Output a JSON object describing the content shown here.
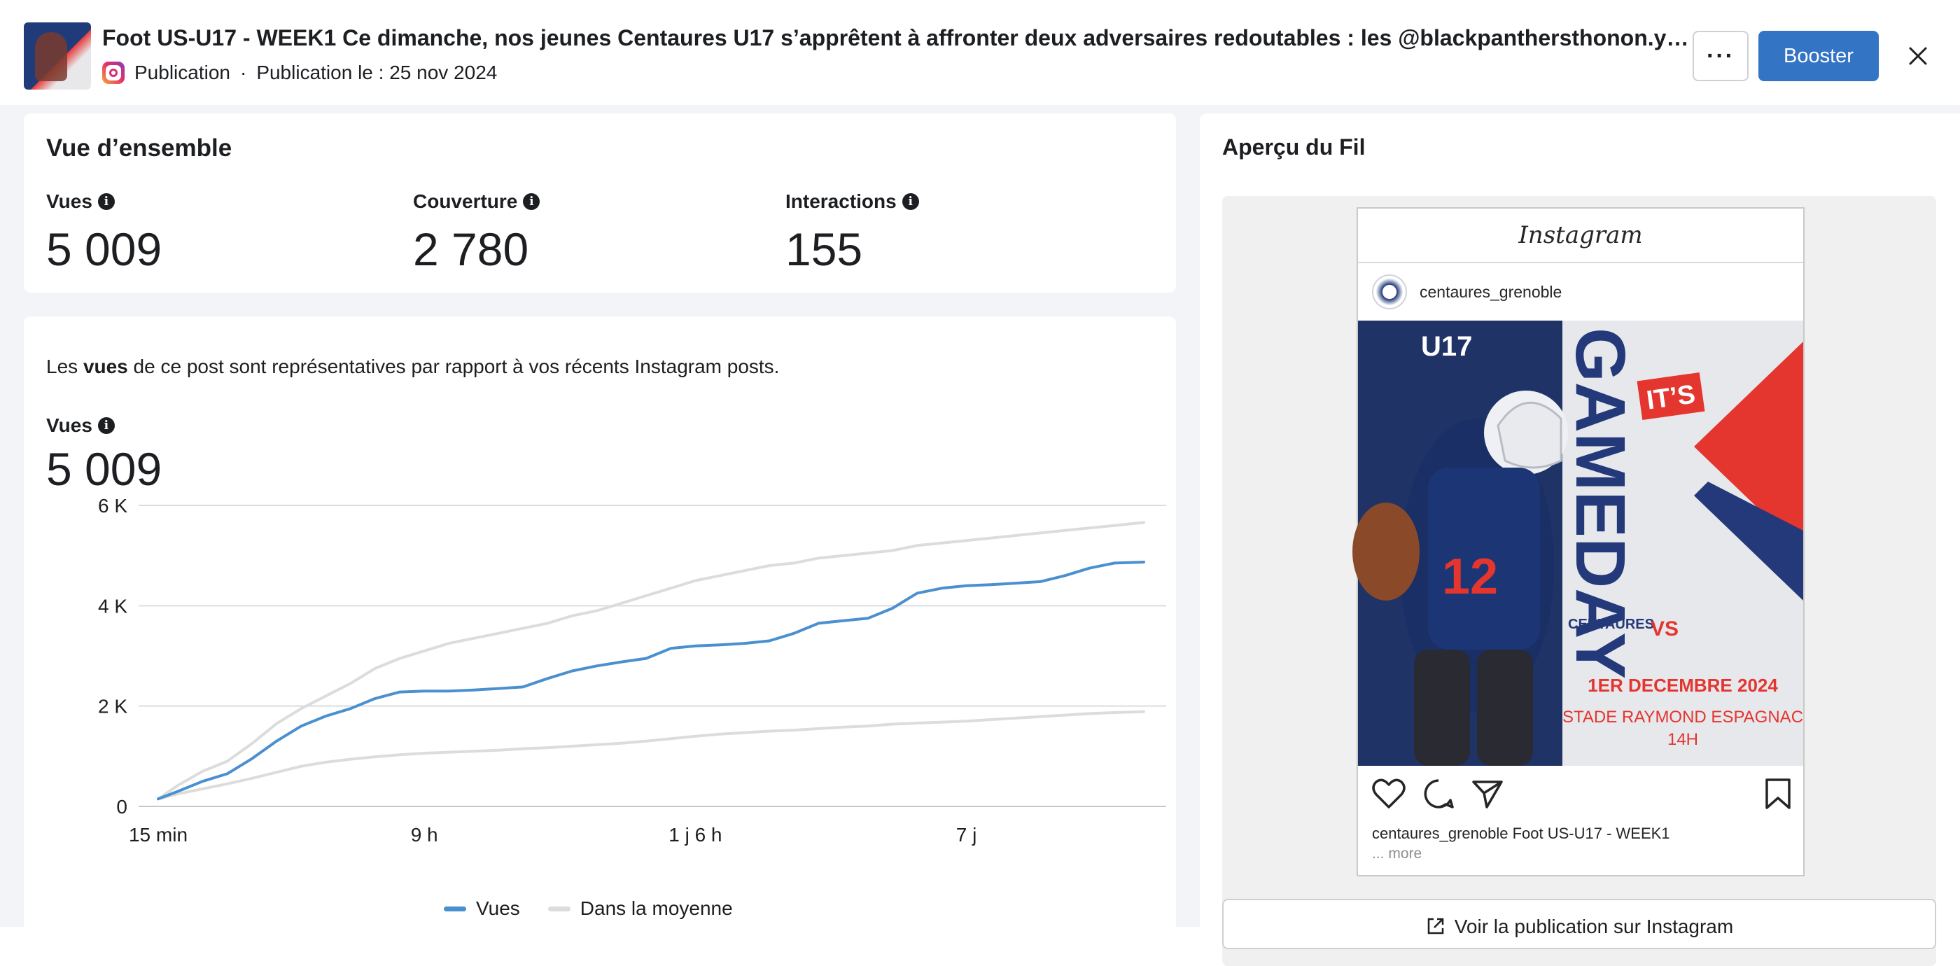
{
  "header": {
    "title": "Foot US-U17 - WEEK1 Ce dimanche, nos jeunes Centaures U17 s’apprêtent à affronter deux adversaires redoutables : les @blackpanthersthonon.y…",
    "type_label": "Publication",
    "separator": "·",
    "date_label": "Publication le : 25 nov 2024",
    "more_label": "···",
    "boost_label": "Booster",
    "platform_icon": "instagram-icon",
    "close_icon": "close-icon"
  },
  "overview": {
    "title": "Vue d’ensemble",
    "metrics": [
      {
        "label": "Vues",
        "value": "5 009"
      },
      {
        "label": "Couverture",
        "value": "2 780"
      },
      {
        "label": "Interactions",
        "value": "155"
      }
    ]
  },
  "views_section": {
    "desc_prefix": "Les ",
    "desc_bold": "vues",
    "desc_suffix": " de ce post sont représentatives par rapport à vos récents Instagram posts.",
    "label": "Vues",
    "value": "5 009"
  },
  "chart_data": {
    "type": "line",
    "x_tick_labels": [
      "15 min",
      "9 h",
      "1 j 6 h",
      "7 j"
    ],
    "y_tick_labels": [
      "0",
      "2 K",
      "4 K",
      "6 K"
    ],
    "ylim": [
      0,
      6000
    ],
    "x": [
      0,
      0.02,
      0.045,
      0.07,
      0.095,
      0.12,
      0.145,
      0.17,
      0.195,
      0.22,
      0.245,
      0.27,
      0.295,
      0.32,
      0.345,
      0.37,
      0.395,
      0.42,
      0.445,
      0.47,
      0.495,
      0.52,
      0.545,
      0.57,
      0.595,
      0.62,
      0.645,
      0.67,
      0.695,
      0.72,
      0.745,
      0.77,
      0.795,
      0.82,
      0.845,
      0.87,
      0.895,
      0.92,
      0.945,
      0.97,
      1.0
    ],
    "series": [
      {
        "name": "Vues",
        "color": "#4a90d0",
        "values": [
          150,
          300,
          500,
          650,
          950,
          1300,
          1600,
          1800,
          1950,
          2150,
          2280,
          2300,
          2300,
          2320,
          2350,
          2380,
          2550,
          2700,
          2800,
          2880,
          2950,
          3150,
          3200,
          3220,
          3250,
          3300,
          3450,
          3650,
          3700,
          3750,
          3950,
          4250,
          4350,
          4400,
          4420,
          4450,
          4480,
          4600,
          4750,
          4850,
          4870
        ]
      },
      {
        "name": "Dans la moyenne",
        "color": "#dcdcdc",
        "values": [
          150,
          250,
          350,
          450,
          560,
          680,
          800,
          880,
          940,
          990,
          1030,
          1060,
          1080,
          1100,
          1120,
          1150,
          1170,
          1200,
          1230,
          1260,
          1300,
          1350,
          1400,
          1440,
          1470,
          1500,
          1520,
          1550,
          1580,
          1600,
          1640,
          1660,
          1680,
          1700,
          1730,
          1760,
          1790,
          1820,
          1850,
          1870,
          1890
        ]
      },
      {
        "name": "",
        "color": "#dcdcdc",
        "values": [
          150,
          420,
          700,
          900,
          1250,
          1650,
          1950,
          2200,
          2450,
          2750,
          2950,
          3100,
          3250,
          3350,
          3450,
          3550,
          3650,
          3800,
          3900,
          4050,
          4200,
          4350,
          4500,
          4600,
          4700,
          4800,
          4850,
          4950,
          5000,
          5050,
          5100,
          5200,
          5250,
          5300,
          5350,
          5400,
          5450,
          5500,
          5550,
          5600,
          5660
        ]
      }
    ]
  },
  "legend": [
    {
      "label": "Vues",
      "color": "#4a90d0"
    },
    {
      "label": "Dans la moyenne",
      "color": "#dcdcdc"
    }
  ],
  "preview": {
    "title": "Aperçu du Fil",
    "ig_logo": "Instagram",
    "username": "centaures_grenoble",
    "image": {
      "team_label": "U17",
      "badge_its": "IT’S",
      "headline": "GAMEDAY",
      "vs_label": "VS",
      "club_label": "CENTAURES",
      "date": "1ER DECEMBRE 2024",
      "venue": "STADE RAYMOND ESPAGNAC",
      "time": "14H",
      "jersey_number": "12"
    },
    "caption": "centaures_grenoble Foot US-U17 - WEEK1",
    "more": "... more",
    "view_button": "Voir la publication sur Instagram",
    "icons": [
      "heart-icon",
      "comment-icon",
      "share-icon",
      "bookmark-icon"
    ]
  },
  "colors": {
    "accent": "#3474c4",
    "views_line": "#4a90d0",
    "average_line": "#dcdcdc",
    "page_bg": "#f3f4f8"
  }
}
